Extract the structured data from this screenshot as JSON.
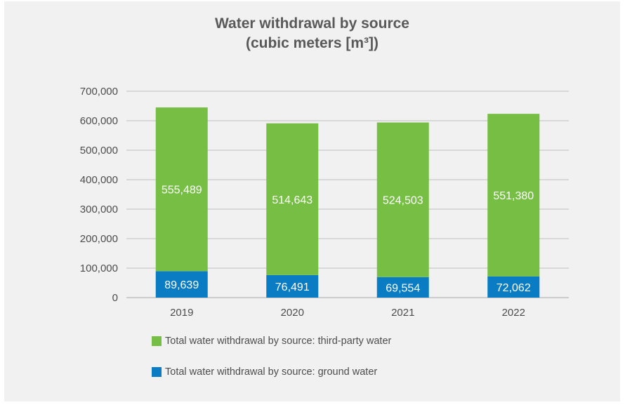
{
  "chart_data": {
    "type": "bar",
    "stacked": true,
    "title_line1": "Water withdrawal by source",
    "title_line2": "(cubic meters [m³])",
    "categories": [
      "2019",
      "2020",
      "2021",
      "2022"
    ],
    "series": [
      {
        "name": "Total water withdrawal by source: ground water",
        "values": [
          89639,
          76491,
          69554,
          72062
        ],
        "color": "#0a7cc4"
      },
      {
        "name": "Total water withdrawal by source: third-party water",
        "values": [
          555489,
          514643,
          524503,
          551380
        ],
        "color": "#76bf44"
      }
    ],
    "data_labels": {
      "ground": [
        "89,639",
        "76,491",
        "69,554",
        "72,062"
      ],
      "third_party": [
        "555,489",
        "514,643",
        "524,503",
        "551,380"
      ]
    },
    "yticks": [
      "0",
      "100,000",
      "200,000",
      "300,000",
      "400,000",
      "500,000",
      "600,000",
      "700,000"
    ],
    "ylim": [
      0,
      700000
    ],
    "grid": true,
    "legend_position": "bottom"
  }
}
